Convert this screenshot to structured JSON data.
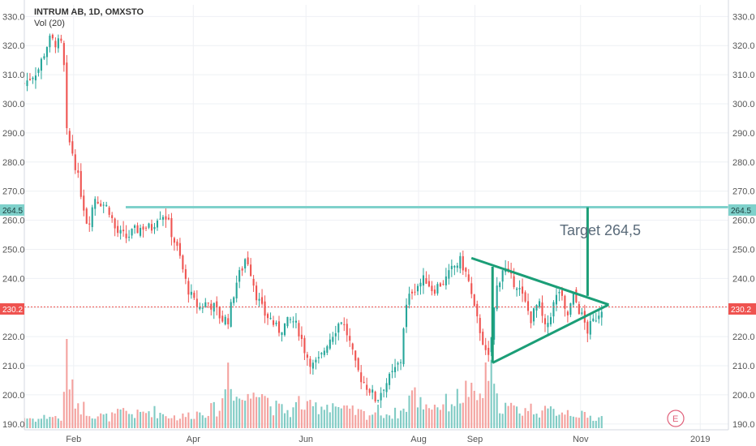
{
  "header": {
    "symbol_line": "INTRUM AB, 1D, OMXSTO",
    "indicator": "Vol (20)"
  },
  "y_axis": {
    "ticks": [
      "190.0",
      "200.0",
      "210.0",
      "220.0",
      "230.0",
      "240.0",
      "250.0",
      "260.0",
      "270.0",
      "280.0",
      "290.0",
      "300.0",
      "310.0",
      "320.0",
      "330.0"
    ]
  },
  "x_axis": {
    "labels": [
      {
        "label": "Feb",
        "pos": 0.07
      },
      {
        "label": "Apr",
        "pos": 0.24
      },
      {
        "label": "Jun",
        "pos": 0.4
      },
      {
        "label": "Aug",
        "pos": 0.56
      },
      {
        "label": "Sep",
        "pos": 0.64
      },
      {
        "label": "Nov",
        "pos": 0.79
      },
      {
        "label": "2019",
        "pos": 0.96
      },
      {
        "label": "Feb",
        "pos": 1.05
      }
    ]
  },
  "price_badges": {
    "target_value": "264.5",
    "last_value": "230.2"
  },
  "annotation": {
    "target_text": "Target 264,5"
  },
  "earnings_marker": "E",
  "colors": {
    "up": "#26a69a",
    "down": "#ef5350",
    "vol_up": "#80cbc4",
    "vol_down": "#f4a29f",
    "drawing": "#1b9e77",
    "target_line": "#7fd1cb",
    "badge_target": "#7fd1cb",
    "badge_last": "#ef5350"
  },
  "chart_data": {
    "type": "candlestick",
    "title": "INTRUM AB, 1D, OMXSTO",
    "ylim": [
      188,
      334
    ],
    "x_axis_labels": [
      "Feb",
      "Apr",
      "Jun",
      "Aug",
      "Sep",
      "Nov",
      "2019",
      "Feb"
    ],
    "y_ticks": [
      190,
      200,
      210,
      220,
      230,
      240,
      250,
      260,
      270,
      280,
      290,
      300,
      310,
      320,
      330
    ],
    "price_path": [
      [
        0.0,
        307
      ],
      [
        0.02,
        312
      ],
      [
        0.035,
        322
      ],
      [
        0.045,
        321
      ],
      [
        0.055,
        320
      ],
      [
        0.06,
        290
      ],
      [
        0.07,
        282
      ],
      [
        0.08,
        270
      ],
      [
        0.09,
        258
      ],
      [
        0.1,
        268
      ],
      [
        0.11,
        266
      ],
      [
        0.12,
        264
      ],
      [
        0.13,
        256
      ],
      [
        0.145,
        254
      ],
      [
        0.155,
        256
      ],
      [
        0.17,
        258
      ],
      [
        0.18,
        257
      ],
      [
        0.19,
        262
      ],
      [
        0.2,
        262
      ],
      [
        0.21,
        255
      ],
      [
        0.22,
        248
      ],
      [
        0.23,
        238
      ],
      [
        0.24,
        232
      ],
      [
        0.25,
        230
      ],
      [
        0.26,
        232
      ],
      [
        0.27,
        230
      ],
      [
        0.28,
        226
      ],
      [
        0.29,
        226
      ],
      [
        0.3,
        238
      ],
      [
        0.31,
        244
      ],
      [
        0.315,
        248
      ],
      [
        0.32,
        244
      ],
      [
        0.33,
        234
      ],
      [
        0.34,
        228
      ],
      [
        0.35,
        226
      ],
      [
        0.36,
        222
      ],
      [
        0.37,
        224
      ],
      [
        0.38,
        226
      ],
      [
        0.39,
        222
      ],
      [
        0.4,
        214
      ],
      [
        0.41,
        210
      ],
      [
        0.42,
        212
      ],
      [
        0.43,
        218
      ],
      [
        0.44,
        222
      ],
      [
        0.45,
        226
      ],
      [
        0.46,
        220
      ],
      [
        0.47,
        210
      ],
      [
        0.48,
        205
      ],
      [
        0.49,
        202
      ],
      [
        0.5,
        198
      ],
      [
        0.51,
        203
      ],
      [
        0.52,
        206
      ],
      [
        0.53,
        210
      ],
      [
        0.535,
        212
      ],
      [
        0.54,
        228
      ],
      [
        0.55,
        236
      ],
      [
        0.56,
        238
      ],
      [
        0.57,
        240
      ],
      [
        0.58,
        236
      ],
      [
        0.59,
        238
      ],
      [
        0.6,
        240
      ],
      [
        0.61,
        244
      ],
      [
        0.62,
        246
      ],
      [
        0.63,
        240
      ],
      [
        0.64,
        228
      ],
      [
        0.65,
        220
      ],
      [
        0.655,
        214
      ],
      [
        0.66,
        212
      ],
      [
        0.67,
        236
      ],
      [
        0.68,
        244
      ],
      [
        0.69,
        240
      ],
      [
        0.7,
        238
      ],
      [
        0.71,
        232
      ],
      [
        0.72,
        226
      ],
      [
        0.73,
        232
      ],
      [
        0.74,
        222
      ],
      [
        0.75,
        230
      ],
      [
        0.76,
        236
      ],
      [
        0.77,
        226
      ],
      [
        0.78,
        234
      ],
      [
        0.79,
        228
      ],
      [
        0.8,
        222
      ],
      [
        0.81,
        226
      ],
      [
        0.82,
        230
      ]
    ],
    "volume_path": [
      [
        0.0,
        0.12
      ],
      [
        0.02,
        0.1
      ],
      [
        0.035,
        0.14
      ],
      [
        0.045,
        0.12
      ],
      [
        0.055,
        0.1
      ],
      [
        0.06,
        0.95
      ],
      [
        0.065,
        0.5
      ],
      [
        0.07,
        0.35
      ],
      [
        0.08,
        0.25
      ],
      [
        0.09,
        0.2
      ],
      [
        0.1,
        0.15
      ],
      [
        0.12,
        0.12
      ],
      [
        0.14,
        0.18
      ],
      [
        0.16,
        0.15
      ],
      [
        0.18,
        0.2
      ],
      [
        0.2,
        0.15
      ],
      [
        0.22,
        0.12
      ],
      [
        0.23,
        0.14
      ],
      [
        0.26,
        0.2
      ],
      [
        0.28,
        0.22
      ],
      [
        0.29,
        0.75
      ],
      [
        0.3,
        0.35
      ],
      [
        0.32,
        0.32
      ],
      [
        0.33,
        0.58
      ],
      [
        0.35,
        0.25
      ],
      [
        0.36,
        0.22
      ],
      [
        0.38,
        0.18
      ],
      [
        0.39,
        0.3
      ],
      [
        0.4,
        0.22
      ],
      [
        0.42,
        0.25
      ],
      [
        0.44,
        0.28
      ],
      [
        0.45,
        0.2
      ],
      [
        0.47,
        0.18
      ],
      [
        0.49,
        0.15
      ],
      [
        0.5,
        0.2
      ],
      [
        0.52,
        0.15
      ],
      [
        0.54,
        0.2
      ],
      [
        0.55,
        0.42
      ],
      [
        0.56,
        0.3
      ],
      [
        0.58,
        0.25
      ],
      [
        0.6,
        0.28
      ],
      [
        0.62,
        0.35
      ],
      [
        0.63,
        0.45
      ],
      [
        0.64,
        0.3
      ],
      [
        0.65,
        0.38
      ],
      [
        0.66,
        0.7
      ],
      [
        0.67,
        0.3
      ],
      [
        0.68,
        0.25
      ],
      [
        0.7,
        0.2
      ],
      [
        0.72,
        0.22
      ],
      [
        0.74,
        0.18
      ],
      [
        0.76,
        0.2
      ],
      [
        0.78,
        0.18
      ],
      [
        0.8,
        0.12
      ],
      [
        0.82,
        0.12
      ]
    ],
    "target_level": 264.5,
    "last_price": 230.2,
    "triangle_upper": {
      "from": [
        0.635,
        247
      ],
      "to": [
        0.83,
        231
      ]
    },
    "triangle_lower": {
      "from": [
        0.665,
        211
      ],
      "to": [
        0.83,
        231
      ]
    },
    "triangle_height_line": {
      "x": 0.665,
      "from": 211,
      "to": 244
    },
    "target_projection_line": {
      "x": 0.8,
      "from": 234,
      "to": 264.5
    }
  }
}
